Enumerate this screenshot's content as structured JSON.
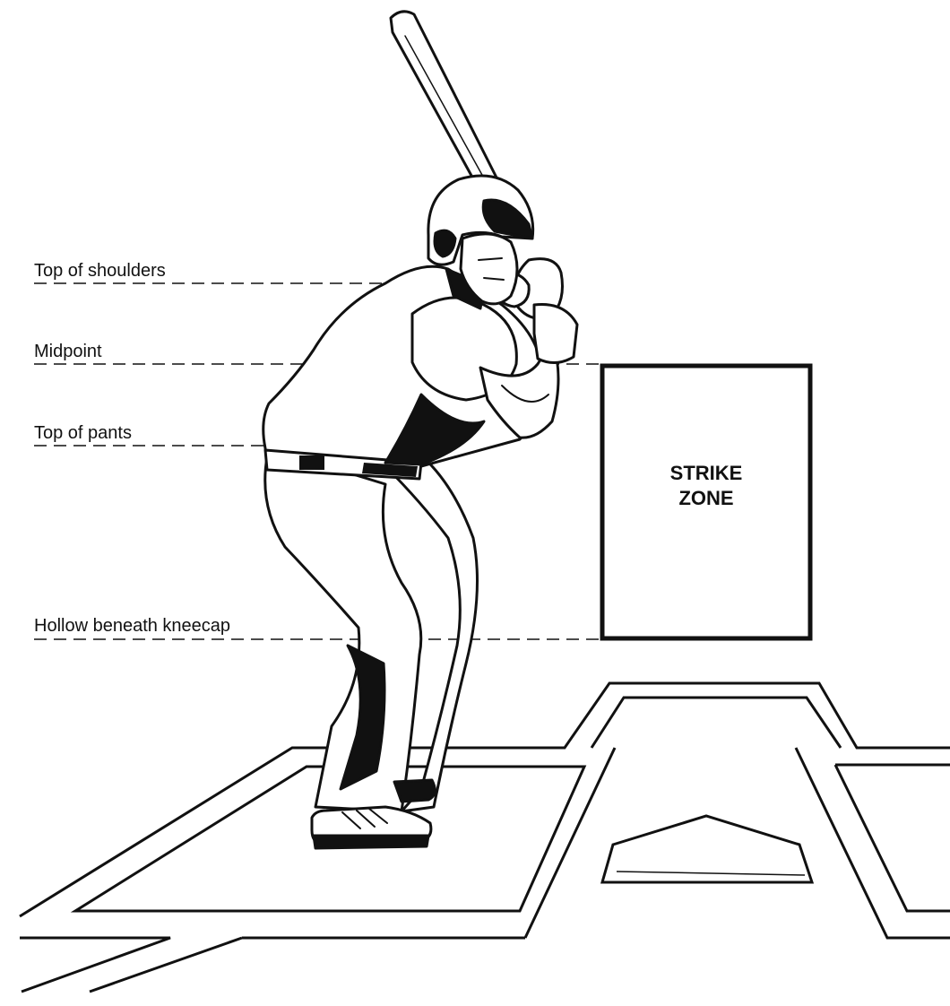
{
  "labels": {
    "shoulders": "Top of shoulders",
    "midpoint": "Midpoint",
    "pants": "Top of pants",
    "knee": "Hollow beneath kneecap"
  },
  "strike_zone": {
    "line1": "STRIKE",
    "line2": "ZONE"
  },
  "colors": {
    "ink": "#111111",
    "paper": "#ffffff"
  },
  "icons": {
    "figure": "batter-figure-icon",
    "plate": "home-plate-icon"
  }
}
